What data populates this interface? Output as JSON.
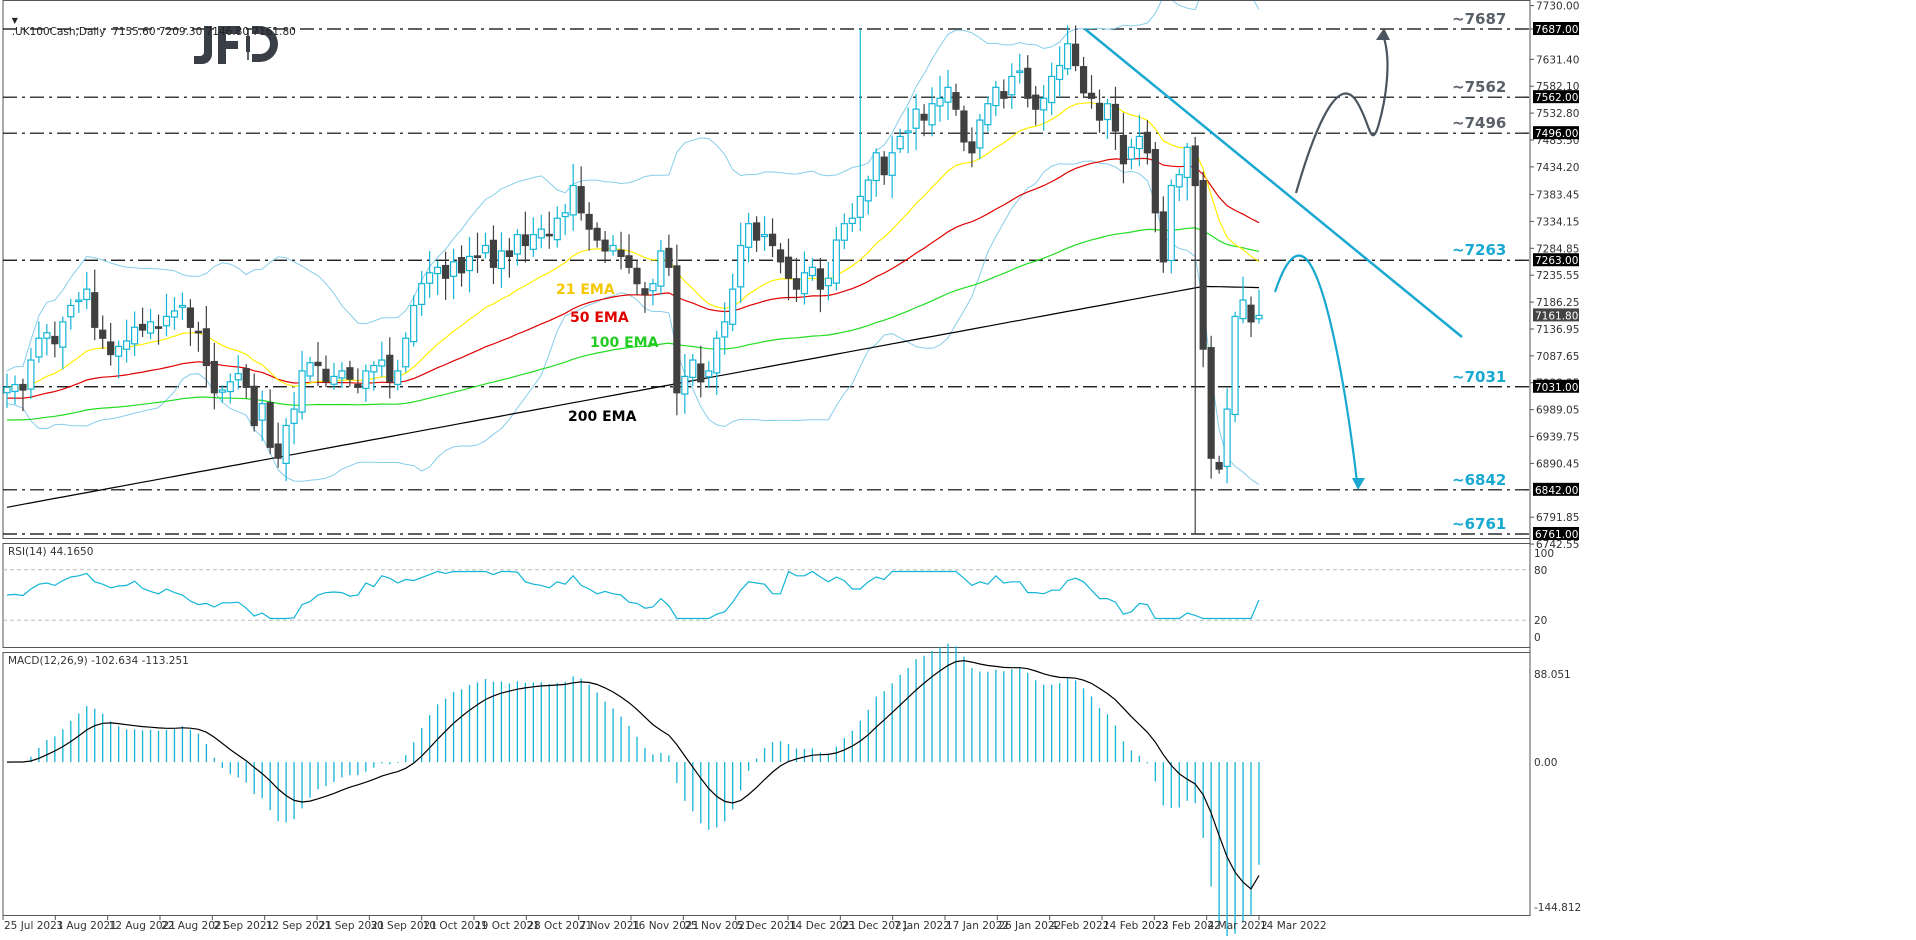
{
  "header": {
    "symbol_line": ".UK100Cash,Daily  7155.60 7209.30 7146.80 7161.80",
    "dropdown_icon": "triangle-down-icon"
  },
  "logo": {
    "text": "JFD",
    "color": "#3a3f47"
  },
  "colors": {
    "bull": "#13b5d6",
    "bear": "#404040",
    "ema21": "#ffee00",
    "ema50": "#e00000",
    "ema100": "#22dd22",
    "ema200": "#000000",
    "bollinger": "#87ceeb",
    "trendline": "#18a8d0",
    "arrow_up": "#4a5560",
    "arrow_down": "#18a8d0",
    "rsi": "#13b5d6",
    "macd_hist": "#13b5d6",
    "macd_signal": "#000000",
    "annot_dark": "#5a6068",
    "annot_blue": "#18a8d0"
  },
  "price_axis": {
    "ticks": [
      "7730.00",
      "7687.00",
      "7631.40",
      "7582.10",
      "7532.80",
      "7483.50",
      "7434.20",
      "7383.45",
      "7334.15",
      "7284.85",
      "7235.55",
      "7186.25",
      "7136.95",
      "7087.65",
      "7038.35",
      "6989.05",
      "6939.75",
      "6890.45",
      "6791.85",
      "6742.55"
    ],
    "tagged_levels": [
      "7687.00",
      "7562.00",
      "7496.00",
      "7263.00",
      "7031.00",
      "6842.00",
      "6761.00"
    ],
    "current_price": "7161.80"
  },
  "annotations": [
    {
      "label": "~7687",
      "price": 7687,
      "tone": "dark"
    },
    {
      "label": "~7562",
      "price": 7562,
      "tone": "dark"
    },
    {
      "label": "~7496",
      "price": 7496,
      "tone": "dark"
    },
    {
      "label": "~7263",
      "price": 7263,
      "tone": "blue"
    },
    {
      "label": "~7031",
      "price": 7031,
      "tone": "blue"
    },
    {
      "label": "~6842",
      "price": 6842,
      "tone": "blue"
    },
    {
      "label": "~6761",
      "price": 6761,
      "tone": "blue"
    }
  ],
  "ema_labels": {
    "ema21": "21 EMA",
    "ema50": "50 EMA",
    "ema100": "100 EMA",
    "ema200": "200 EMA"
  },
  "rsi_pane": {
    "title": "RSI(14) 44.1650",
    "ticks": [
      "100",
      "80",
      "20",
      "0"
    ]
  },
  "macd_pane": {
    "title": "MACD(12,26,9) -102.634 -113.251",
    "ticks": [
      "88.051",
      "0.00",
      "-144.812"
    ]
  },
  "time_axis": {
    "labels": [
      "25 Jul 2021",
      "3 Aug 2021",
      "12 Aug 2021",
      "22 Aug 2021",
      "2 Sep 2021",
      "12 Sep 2021",
      "21 Sep 2021",
      "30 Sep 2021",
      "10 Oct 2021",
      "19 Oct 2021",
      "28 Oct 2021",
      "7 Nov 2021",
      "16 Nov 2021",
      "25 Nov 2021",
      "5 Dec 2021",
      "14 Dec 2021",
      "23 Dec 2021",
      "7 Jan 2022",
      "17 Jan 2022",
      "26 Jan 2022",
      "4 Feb 2022",
      "14 Feb 2022",
      "23 Feb 2022",
      "4 Mar 2022",
      "14 Mar 2022"
    ]
  },
  "chart_data": {
    "type": "candlestick",
    "title": ".UK100Cash,Daily",
    "last_ohlc": {
      "open": 7155.6,
      "high": 7209.3,
      "low": 7146.8,
      "close": 7161.8
    },
    "ylim": [
      6742.55,
      7730.0
    ],
    "x_range": [
      "25 Jul 2021",
      "14 Mar 2022"
    ],
    "horizontal_levels": [
      7687,
      7562,
      7496,
      7263,
      7031,
      6842,
      6761
    ],
    "indicators": [
      "21 EMA",
      "50 EMA",
      "100 EMA",
      "200 EMA",
      "Bollinger Bands",
      "RSI(14)",
      "MACD(12,26,9)"
    ],
    "closes": [
      7030,
      7035,
      7025,
      7080,
      7120,
      7130,
      7110,
      7150,
      7180,
      7190,
      7210,
      7140,
      7120,
      7090,
      7105,
      7115,
      7140,
      7135,
      7150,
      7140,
      7160,
      7170,
      7180,
      7140,
      7130,
      7070,
      7020,
      7025,
      7040,
      7055,
      7030,
      6960,
      7000,
      6920,
      6900,
      6960,
      6990,
      7060,
      7075,
      7070,
      7040,
      7050,
      7060,
      7045,
      7030,
      7060,
      7070,
      7080,
      7040,
      7060,
      7120,
      7180,
      7220,
      7240,
      7250,
      7230,
      7260,
      7240,
      7270,
      7270,
      7290,
      7250,
      7280,
      7270,
      7310,
      7290,
      7310,
      7320,
      7310,
      7340,
      7350,
      7400,
      7350,
      7320,
      7300,
      7280,
      7290,
      7270,
      7250,
      7220,
      7200,
      7220,
      7280,
      7250,
      7020,
      7050,
      7080,
      7040,
      7060,
      7120,
      7150,
      7210,
      7290,
      7330,
      7300,
      7310,
      7290,
      7260,
      7230,
      7210,
      7240,
      7250,
      7210,
      7230,
      7300,
      7330,
      7340,
      7380,
      7410,
      7460,
      7420,
      7460,
      7490,
      7500,
      7540,
      7520,
      7550,
      7560,
      7580,
      7540,
      7480,
      7460,
      7520,
      7550,
      7580,
      7560,
      7600,
      7610,
      7560,
      7540,
      7560,
      7600,
      7620,
      7660,
      7620,
      7570,
      7560,
      7520,
      7550,
      7500,
      7440,
      7470,
      7490,
      7460,
      7350,
      7260,
      7400,
      7420,
      7470,
      7400,
      7100,
      6900,
      6880,
      6990,
      7160,
      7190,
      7150,
      7162
    ],
    "rsi_last": 44.165,
    "macd_last": -102.634,
    "macd_signal_last": -113.251
  }
}
